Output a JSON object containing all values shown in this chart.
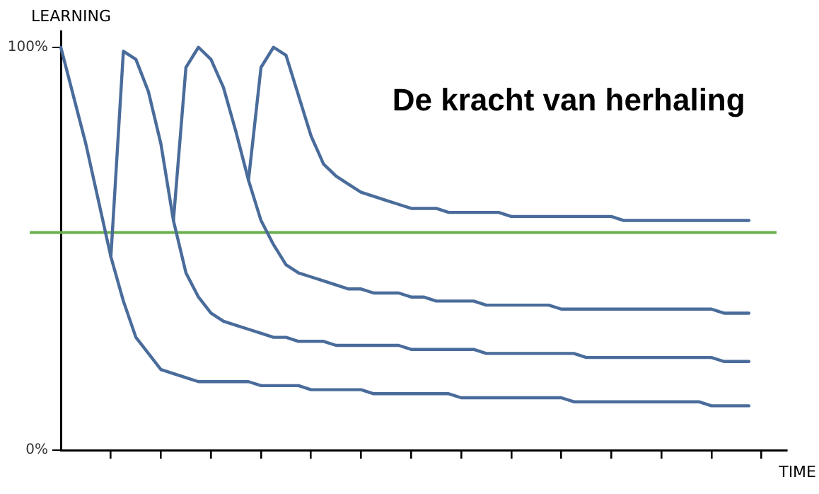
{
  "chart_data": {
    "type": "line",
    "title": "De kracht van herhaling",
    "xlabel": "TIME",
    "ylabel": "LEARNING",
    "categories": [
      null,
      null,
      null,
      null,
      null,
      null,
      null,
      null,
      null,
      null,
      null,
      null,
      null,
      null,
      null,
      null,
      null,
      null,
      null,
      null,
      null,
      null,
      null,
      null,
      null,
      null,
      null,
      null,
      null,
      null,
      null,
      null,
      null,
      null,
      null,
      null,
      null,
      null,
      null,
      null,
      null,
      null,
      null,
      null,
      null,
      null,
      null,
      null,
      null,
      null,
      null,
      null,
      null,
      null,
      null,
      null,
      null,
      null,
      null
    ],
    "ylim": [
      0,
      104
    ],
    "yticks": [
      {
        "value": 0,
        "label": "0%"
      },
      {
        "value": 100,
        "label": "100%"
      }
    ],
    "grid": false,
    "legend": false,
    "marker": "none",
    "line_style": "solid",
    "series": [
      {
        "color": "#4a6c9b",
        "values": [
          100,
          88,
          76,
          62,
          48,
          37,
          28,
          24,
          20,
          19,
          18,
          17,
          17,
          17,
          17,
          17,
          16,
          16,
          16,
          16,
          15,
          15,
          15,
          15,
          15,
          14,
          14,
          14,
          14,
          14,
          14,
          14,
          13,
          13,
          13,
          13,
          13,
          13,
          13,
          13,
          13,
          12,
          12,
          12,
          12,
          12,
          12,
          12,
          12,
          12,
          12,
          12,
          11,
          11,
          11,
          11,
          null,
          null,
          null
        ]
      },
      {
        "color": "#4a6c9b",
        "values": [
          null,
          null,
          null,
          null,
          48,
          99,
          97,
          89,
          76,
          57,
          44,
          38,
          34,
          32,
          31,
          30,
          29,
          28,
          28,
          27,
          27,
          27,
          26,
          26,
          26,
          26,
          26,
          26,
          25,
          25,
          25,
          25,
          25,
          25,
          24,
          24,
          24,
          24,
          24,
          24,
          24,
          24,
          23,
          23,
          23,
          23,
          23,
          23,
          23,
          23,
          23,
          23,
          23,
          22,
          22,
          22,
          null,
          null,
          null
        ]
      },
      {
        "color": "#4a6c9b",
        "values": [
          null,
          null,
          null,
          null,
          null,
          null,
          null,
          null,
          null,
          57,
          95,
          100,
          97,
          90,
          79,
          67,
          57,
          51,
          46,
          44,
          43,
          42,
          41,
          40,
          40,
          39,
          39,
          39,
          38,
          38,
          37,
          37,
          37,
          37,
          36,
          36,
          36,
          36,
          36,
          36,
          35,
          35,
          35,
          35,
          35,
          35,
          35,
          35,
          35,
          35,
          35,
          35,
          35,
          34,
          34,
          34,
          null,
          null,
          null
        ]
      },
      {
        "color": "#4a6c9b",
        "values": [
          null,
          null,
          null,
          null,
          null,
          null,
          null,
          null,
          null,
          null,
          null,
          null,
          null,
          null,
          null,
          67,
          95,
          100,
          98,
          88,
          78,
          71,
          68,
          66,
          64,
          63,
          62,
          61,
          60,
          60,
          60,
          59,
          59,
          59,
          59,
          59,
          58,
          58,
          58,
          58,
          58,
          58,
          58,
          58,
          58,
          57,
          57,
          57,
          57,
          57,
          57,
          57,
          57,
          57,
          57,
          57,
          null,
          null,
          null
        ]
      }
    ],
    "ref_lines": [
      {
        "axis": "y",
        "value": 54,
        "color": "#6ab04c"
      }
    ]
  }
}
